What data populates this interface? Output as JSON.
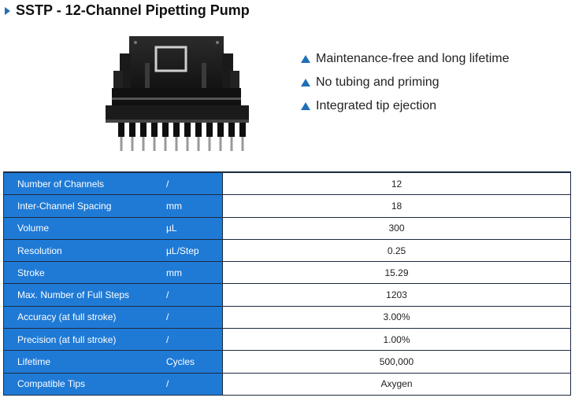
{
  "title": "SSTP - 12-Channel Pipetting Pump",
  "colors": {
    "accent": "#1f7ad6",
    "title_marker": "#1f6fb5",
    "border": "#1b2b3f"
  },
  "product_image": {
    "icon": "pipetting-pump-image"
  },
  "features": [
    {
      "text": "Maintenance-free and long lifetime"
    },
    {
      "text": "No tubing and priming"
    },
    {
      "text": "Integrated tip ejection"
    }
  ],
  "specs": [
    {
      "label": "Number of Channels",
      "unit": "/",
      "value": "12"
    },
    {
      "label": "Inter-Channel Spacing",
      "unit": "mm",
      "value": "18"
    },
    {
      "label": "Volume",
      "unit": "µL",
      "value": "300"
    },
    {
      "label": "Resolution",
      "unit": "µL/Step",
      "value": "0.25"
    },
    {
      "label": "Stroke",
      "unit": "mm",
      "value": "15.29"
    },
    {
      "label": "Max. Number of Full Steps",
      "unit": "/",
      "value": "1203"
    },
    {
      "label": "Accuracy (at full stroke)",
      "unit": "/",
      "value": "3.00%"
    },
    {
      "label": "Precision (at full stroke)",
      "unit": "/",
      "value": "1.00%"
    },
    {
      "label": "Lifetime",
      "unit": "Cycles",
      "value": "500,000"
    },
    {
      "label": "Compatible Tips",
      "unit": "/",
      "value": "Axygen"
    }
  ]
}
